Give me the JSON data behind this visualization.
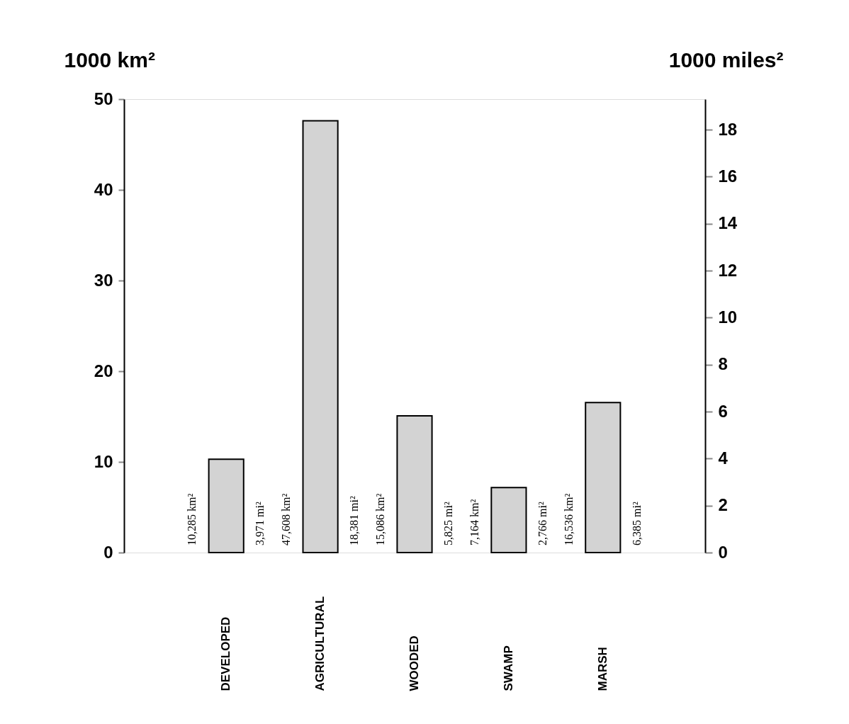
{
  "chart_data": {
    "type": "bar",
    "ylabel": "1000 km²",
    "y2label": "1000 miles²",
    "categories": [
      "DEVELOPED",
      "AGRICULTURAL",
      "WOODED",
      "SWAMP",
      "MARSH"
    ],
    "values": [
      10.285,
      47.608,
      15.086,
      7.164,
      16.536
    ],
    "color": "#d3d3d3",
    "annotations": [
      "10,285 km²",
      "3,971 mi²",
      "47,608 km²",
      "18,381 mi²",
      "15,086 km²",
      "5,825 mi²",
      "7,164 km²",
      "2,766 mi²",
      "16,536 km²",
      "6,385 mi²"
    ],
    "ylim": [
      0,
      50
    ],
    "yticks": [
      0,
      10,
      20,
      30,
      40,
      50
    ],
    "y2lim": [
      0,
      19.3
    ],
    "y2ticks": [
      0,
      2,
      4,
      6,
      8,
      10,
      12,
      14,
      16,
      18
    ],
    "grid": false
  }
}
